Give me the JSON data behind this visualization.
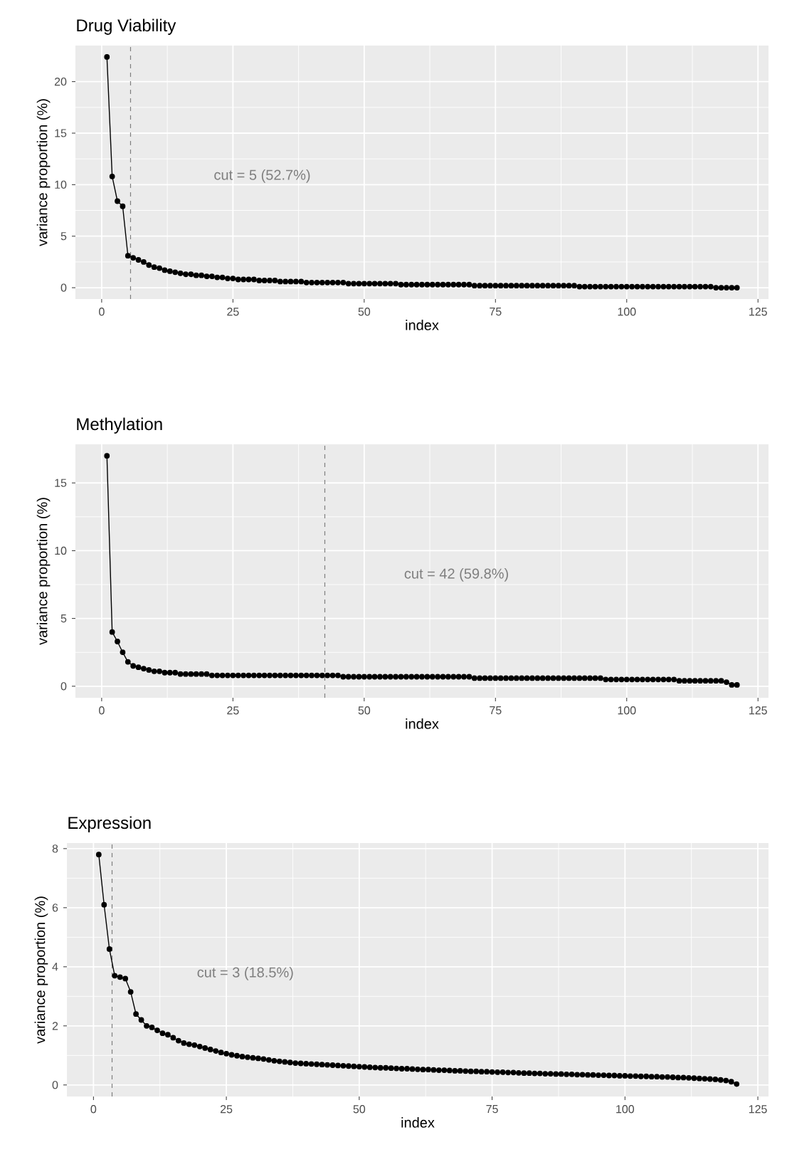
{
  "chart_data": [
    {
      "type": "line",
      "title": "Drug Viability",
      "xlabel": "index",
      "ylabel": "variance proportion (%)",
      "color": "#000000",
      "marker": "circle",
      "grid": true,
      "xlim": [
        -5,
        127
      ],
      "xticks": [
        0,
        25,
        50,
        75,
        100,
        125
      ],
      "ylim": [
        -1.1,
        23.5
      ],
      "yticks": [
        0,
        5,
        10,
        15,
        20
      ],
      "ref_lines": [
        {
          "axis": "x",
          "value": 5.5,
          "label": "cut = 5 (52.7%)",
          "color": "#7f7f7f",
          "line_style": "dashed"
        }
      ],
      "x": [
        1,
        2,
        3,
        4,
        5,
        6,
        7,
        8,
        9,
        10,
        11,
        12,
        13,
        14,
        15,
        16,
        17,
        18,
        19,
        20,
        21,
        22,
        23,
        24,
        25,
        26,
        27,
        28,
        29,
        30,
        31,
        32,
        33,
        34,
        35,
        36,
        37,
        38,
        39,
        40,
        41,
        42,
        43,
        44,
        45,
        46,
        47,
        48,
        49,
        50,
        51,
        52,
        53,
        54,
        55,
        56,
        57,
        58,
        59,
        60,
        61,
        62,
        63,
        64,
        65,
        66,
        67,
        68,
        69,
        70,
        71,
        72,
        73,
        74,
        75,
        76,
        77,
        78,
        79,
        80,
        81,
        82,
        83,
        84,
        85,
        86,
        87,
        88,
        89,
        90,
        91,
        92,
        93,
        94,
        95,
        96,
        97,
        98,
        99,
        100,
        101,
        102,
        103,
        104,
        105,
        106,
        107,
        108,
        109,
        110,
        111,
        112,
        113,
        114,
        115,
        116,
        117,
        118,
        119,
        120,
        121
      ],
      "values": [
        22.4,
        10.8,
        8.4,
        7.9,
        3.1,
        2.9,
        2.7,
        2.5,
        2.2,
        2.0,
        1.9,
        1.7,
        1.6,
        1.5,
        1.4,
        1.3,
        1.3,
        1.2,
        1.2,
        1.1,
        1.1,
        1.0,
        1.0,
        0.9,
        0.9,
        0.8,
        0.8,
        0.8,
        0.8,
        0.7,
        0.7,
        0.7,
        0.7,
        0.6,
        0.6,
        0.6,
        0.6,
        0.6,
        0.5,
        0.5,
        0.5,
        0.5,
        0.5,
        0.5,
        0.5,
        0.5,
        0.4,
        0.4,
        0.4,
        0.4,
        0.4,
        0.4,
        0.4,
        0.4,
        0.4,
        0.4,
        0.3,
        0.3,
        0.3,
        0.3,
        0.3,
        0.3,
        0.3,
        0.3,
        0.3,
        0.3,
        0.3,
        0.3,
        0.3,
        0.3,
        0.2,
        0.2,
        0.2,
        0.2,
        0.2,
        0.2,
        0.2,
        0.2,
        0.2,
        0.2,
        0.2,
        0.2,
        0.2,
        0.2,
        0.2,
        0.2,
        0.2,
        0.2,
        0.2,
        0.2,
        0.1,
        0.1,
        0.1,
        0.1,
        0.1,
        0.1,
        0.1,
        0.1,
        0.1,
        0.1,
        0.1,
        0.1,
        0.1,
        0.1,
        0.1,
        0.1,
        0.1,
        0.1,
        0.1,
        0.1,
        0.1,
        0.1,
        0.1,
        0.1,
        0.1,
        0.1,
        0.0,
        0.0,
        0.0,
        0.0,
        0.0
      ]
    },
    {
      "type": "line",
      "title": "Methylation",
      "xlabel": "index",
      "ylabel": "variance proportion (%)",
      "color": "#000000",
      "marker": "circle",
      "grid": true,
      "xlim": [
        -5,
        127
      ],
      "xticks": [
        0,
        25,
        50,
        75,
        100,
        125
      ],
      "ylim": [
        -0.85,
        17.85
      ],
      "yticks": [
        0,
        5,
        10,
        15
      ],
      "ref_lines": [
        {
          "axis": "x",
          "value": 42.5,
          "label": "cut = 42 (59.8%)",
          "color": "#7f7f7f",
          "line_style": "dashed"
        }
      ],
      "x": [
        1,
        2,
        3,
        4,
        5,
        6,
        7,
        8,
        9,
        10,
        11,
        12,
        13,
        14,
        15,
        16,
        17,
        18,
        19,
        20,
        21,
        22,
        23,
        24,
        25,
        26,
        27,
        28,
        29,
        30,
        31,
        32,
        33,
        34,
        35,
        36,
        37,
        38,
        39,
        40,
        41,
        42,
        43,
        44,
        45,
        46,
        47,
        48,
        49,
        50,
        51,
        52,
        53,
        54,
        55,
        56,
        57,
        58,
        59,
        60,
        61,
        62,
        63,
        64,
        65,
        66,
        67,
        68,
        69,
        70,
        71,
        72,
        73,
        74,
        75,
        76,
        77,
        78,
        79,
        80,
        81,
        82,
        83,
        84,
        85,
        86,
        87,
        88,
        89,
        90,
        91,
        92,
        93,
        94,
        95,
        96,
        97,
        98,
        99,
        100,
        101,
        102,
        103,
        104,
        105,
        106,
        107,
        108,
        109,
        110,
        111,
        112,
        113,
        114,
        115,
        116,
        117,
        118,
        119,
        120,
        121
      ],
      "values": [
        17.0,
        4.0,
        3.3,
        2.5,
        1.8,
        1.5,
        1.4,
        1.3,
        1.2,
        1.1,
        1.1,
        1.0,
        1.0,
        1.0,
        0.9,
        0.9,
        0.9,
        0.9,
        0.9,
        0.9,
        0.8,
        0.8,
        0.8,
        0.8,
        0.8,
        0.8,
        0.8,
        0.8,
        0.8,
        0.8,
        0.8,
        0.8,
        0.8,
        0.8,
        0.8,
        0.8,
        0.8,
        0.8,
        0.8,
        0.8,
        0.8,
        0.8,
        0.8,
        0.8,
        0.8,
        0.7,
        0.7,
        0.7,
        0.7,
        0.7,
        0.7,
        0.7,
        0.7,
        0.7,
        0.7,
        0.7,
        0.7,
        0.7,
        0.7,
        0.7,
        0.7,
        0.7,
        0.7,
        0.7,
        0.7,
        0.7,
        0.7,
        0.7,
        0.7,
        0.7,
        0.6,
        0.6,
        0.6,
        0.6,
        0.6,
        0.6,
        0.6,
        0.6,
        0.6,
        0.6,
        0.6,
        0.6,
        0.6,
        0.6,
        0.6,
        0.6,
        0.6,
        0.6,
        0.6,
        0.6,
        0.6,
        0.6,
        0.6,
        0.6,
        0.6,
        0.5,
        0.5,
        0.5,
        0.5,
        0.5,
        0.5,
        0.5,
        0.5,
        0.5,
        0.5,
        0.5,
        0.5,
        0.5,
        0.5,
        0.4,
        0.4,
        0.4,
        0.4,
        0.4,
        0.4,
        0.4,
        0.4,
        0.4,
        0.3,
        0.1,
        0.1
      ]
    },
    {
      "type": "line",
      "title": "Expression",
      "xlabel": "index",
      "ylabel": "variance proportion (%)",
      "color": "#000000",
      "marker": "circle",
      "grid": true,
      "xlim": [
        -5,
        127
      ],
      "xticks": [
        0,
        25,
        50,
        75,
        100,
        125
      ],
      "ylim": [
        -0.39,
        8.19
      ],
      "yticks": [
        0,
        2,
        4,
        6,
        8
      ],
      "ref_lines": [
        {
          "axis": "x",
          "value": 3.5,
          "label": "cut = 3 (18.5%)",
          "color": "#7f7f7f",
          "line_style": "dashed"
        }
      ],
      "x": [
        1,
        2,
        3,
        4,
        5,
        6,
        7,
        8,
        9,
        10,
        11,
        12,
        13,
        14,
        15,
        16,
        17,
        18,
        19,
        20,
        21,
        22,
        23,
        24,
        25,
        26,
        27,
        28,
        29,
        30,
        31,
        32,
        33,
        34,
        35,
        36,
        37,
        38,
        39,
        40,
        41,
        42,
        43,
        44,
        45,
        46,
        47,
        48,
        49,
        50,
        51,
        52,
        53,
        54,
        55,
        56,
        57,
        58,
        59,
        60,
        61,
        62,
        63,
        64,
        65,
        66,
        67,
        68,
        69,
        70,
        71,
        72,
        73,
        74,
        75,
        76,
        77,
        78,
        79,
        80,
        81,
        82,
        83,
        84,
        85,
        86,
        87,
        88,
        89,
        90,
        91,
        92,
        93,
        94,
        95,
        96,
        97,
        98,
        99,
        100,
        101,
        102,
        103,
        104,
        105,
        106,
        107,
        108,
        109,
        110,
        111,
        112,
        113,
        114,
        115,
        116,
        117,
        118,
        119,
        120,
        121
      ],
      "values": [
        7.8,
        6.1,
        4.6,
        3.7,
        3.65,
        3.6,
        3.15,
        2.4,
        2.2,
        2.0,
        1.95,
        1.85,
        1.75,
        1.7,
        1.6,
        1.5,
        1.42,
        1.38,
        1.35,
        1.3,
        1.25,
        1.2,
        1.15,
        1.1,
        1.06,
        1.02,
        0.99,
        0.96,
        0.94,
        0.92,
        0.9,
        0.88,
        0.85,
        0.82,
        0.8,
        0.78,
        0.76,
        0.74,
        0.73,
        0.72,
        0.71,
        0.7,
        0.69,
        0.68,
        0.67,
        0.66,
        0.65,
        0.64,
        0.63,
        0.62,
        0.61,
        0.6,
        0.59,
        0.58,
        0.58,
        0.57,
        0.56,
        0.55,
        0.55,
        0.54,
        0.53,
        0.52,
        0.52,
        0.51,
        0.5,
        0.5,
        0.49,
        0.48,
        0.48,
        0.47,
        0.46,
        0.46,
        0.45,
        0.45,
        0.44,
        0.43,
        0.43,
        0.42,
        0.42,
        0.41,
        0.4,
        0.4,
        0.39,
        0.39,
        0.38,
        0.38,
        0.37,
        0.37,
        0.36,
        0.36,
        0.35,
        0.35,
        0.34,
        0.34,
        0.33,
        0.33,
        0.32,
        0.32,
        0.31,
        0.31,
        0.3,
        0.3,
        0.29,
        0.29,
        0.28,
        0.28,
        0.27,
        0.27,
        0.26,
        0.25,
        0.25,
        0.24,
        0.23,
        0.22,
        0.21,
        0.2,
        0.19,
        0.17,
        0.15,
        0.11,
        0.03
      ]
    }
  ]
}
